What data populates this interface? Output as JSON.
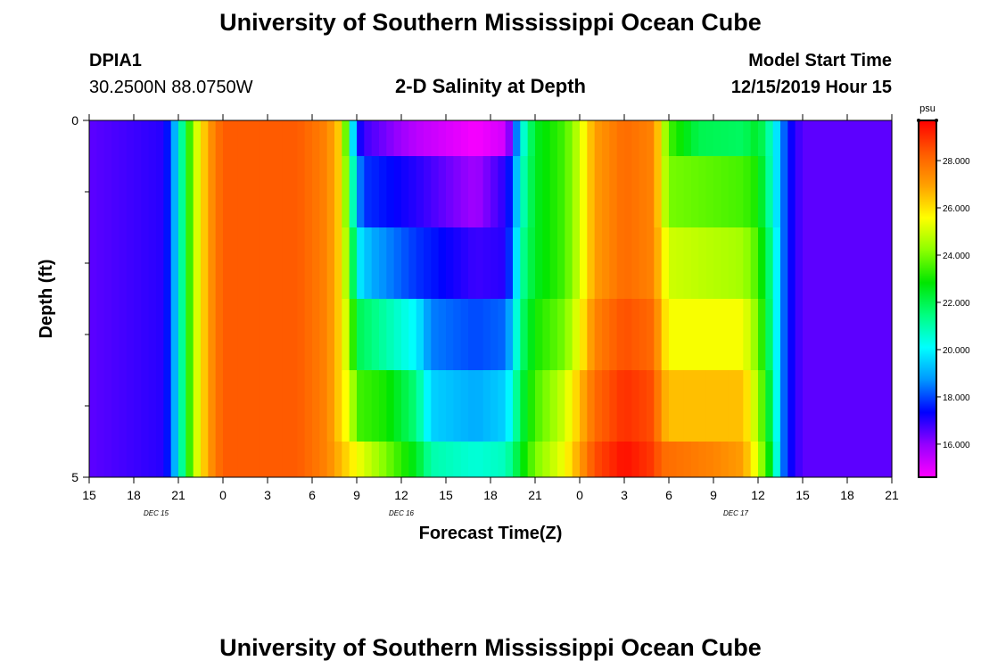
{
  "header": {
    "title": "University of Southern Mississippi Ocean Cube",
    "station_id": "DPIA1",
    "station_coords": "30.2500N 88.0750W",
    "model_start_label": "Model Start Time",
    "model_start_value": "12/15/2019 Hour 15",
    "footer_title": "University of Southern Mississippi Ocean Cube"
  },
  "colors": {
    "background": "#ffffff",
    "colormap": [
      "#ff00ff",
      "#9600ff",
      "#0000ff",
      "#0096ff",
      "#00ffff",
      "#00ff80",
      "#00e600",
      "#8cff00",
      "#ffff00",
      "#ffa000",
      "#ff5a00",
      "#ff0000"
    ]
  },
  "chart_data": {
    "type": "heatmap",
    "title": "2-D Salinity at Depth",
    "xlabel": "Forecast Time(Z)",
    "ylabel": "Depth (ft)",
    "x_tick_labels": [
      "15",
      "18",
      "21",
      "0",
      "3",
      "6",
      "9",
      "12",
      "15",
      "18",
      "21",
      "0",
      "3",
      "6",
      "9",
      "12",
      "15",
      "18",
      "21"
    ],
    "x_range_hours": [
      0,
      54
    ],
    "date_labels": [
      {
        "text": "DEC 15",
        "hour": 4.5
      },
      {
        "text": "DEC 16",
        "hour": 21
      },
      {
        "text": "DEC 17",
        "hour": 43.5
      }
    ],
    "y_tick_labels": [
      "0",
      "5"
    ],
    "ylim": [
      0,
      5
    ],
    "y_minor_ticks": [
      1,
      2,
      3,
      4
    ],
    "colorbar": {
      "unit": "psu",
      "min": 14.6,
      "max": 29.7,
      "tick_labels": [
        "28.000",
        "26.000",
        "24.000",
        "22.000",
        "20.000",
        "18.000",
        "16.000"
      ],
      "tick_values": [
        28,
        26,
        24,
        22,
        20,
        18,
        16
      ]
    },
    "layers": [
      {
        "depth_range": [
          0,
          0.5
        ],
        "knots": [
          [
            0,
            16.5
          ],
          [
            5,
            17.0
          ],
          [
            5.5,
            18.0
          ],
          [
            6.2,
            21.0
          ],
          [
            7.0,
            24.5
          ],
          [
            8.0,
            27.0
          ],
          [
            9,
            28.3
          ],
          [
            14,
            28.3
          ],
          [
            16,
            27.5
          ],
          [
            17,
            26.0
          ],
          [
            17.6,
            21.0
          ],
          [
            18,
            17.5
          ],
          [
            18.5,
            16.8
          ],
          [
            22,
            15.5
          ],
          [
            26,
            14.7
          ],
          [
            28,
            15.2
          ],
          [
            28.5,
            17.0
          ],
          [
            29,
            20.0
          ],
          [
            30,
            22.5
          ],
          [
            32,
            23.5
          ],
          [
            33,
            25.0
          ],
          [
            34,
            27.0
          ],
          [
            36,
            28.0
          ],
          [
            38,
            27.5
          ],
          [
            38.5,
            25.5
          ],
          [
            39,
            23.5
          ],
          [
            41,
            22.0
          ],
          [
            44,
            21.8
          ],
          [
            45,
            22.5
          ],
          [
            46,
            20.5
          ],
          [
            46.5,
            19.0
          ],
          [
            47,
            17.5
          ],
          [
            48,
            16.5
          ],
          [
            54,
            16.5
          ]
        ]
      },
      {
        "depth_range": [
          0.5,
          1.5
        ],
        "knots": [
          [
            0,
            16.5
          ],
          [
            5,
            17.0
          ],
          [
            5.5,
            18.0
          ],
          [
            6.2,
            21.0
          ],
          [
            7.0,
            24.5
          ],
          [
            8.0,
            27.0
          ],
          [
            9,
            28.3
          ],
          [
            14,
            28.3
          ],
          [
            16,
            27.5
          ],
          [
            17,
            26.0
          ],
          [
            17.6,
            22.0
          ],
          [
            18,
            19.0
          ],
          [
            18.5,
            17.8
          ],
          [
            22,
            17.0
          ],
          [
            26,
            15.8
          ],
          [
            28,
            17.0
          ],
          [
            28.5,
            18.0
          ],
          [
            29,
            20.5
          ],
          [
            30,
            22.5
          ],
          [
            32,
            23.5
          ],
          [
            33,
            25.0
          ],
          [
            34,
            27.0
          ],
          [
            36,
            28.0
          ],
          [
            38,
            27.5
          ],
          [
            38.5,
            25.5
          ],
          [
            39,
            24.0
          ],
          [
            44,
            23.5
          ],
          [
            45,
            23.0
          ],
          [
            46,
            20.5
          ],
          [
            46.5,
            19.0
          ],
          [
            47,
            17.5
          ],
          [
            48,
            16.5
          ],
          [
            54,
            16.5
          ]
        ]
      },
      {
        "depth_range": [
          1.5,
          2.5
        ],
        "knots": [
          [
            0,
            16.5
          ],
          [
            5,
            17.0
          ],
          [
            5.5,
            18.0
          ],
          [
            6.2,
            21.0
          ],
          [
            7.0,
            24.5
          ],
          [
            8.0,
            27.0
          ],
          [
            9,
            28.3
          ],
          [
            14,
            28.3
          ],
          [
            16,
            27.5
          ],
          [
            17,
            26.0
          ],
          [
            17.6,
            23.0
          ],
          [
            18,
            20.0
          ],
          [
            19,
            19.0
          ],
          [
            22,
            17.8
          ],
          [
            26,
            16.8
          ],
          [
            28,
            17.0
          ],
          [
            28.5,
            18.5
          ],
          [
            29,
            21.0
          ],
          [
            30,
            22.5
          ],
          [
            32,
            23.5
          ],
          [
            33,
            25.0
          ],
          [
            34,
            27.0
          ],
          [
            36,
            28.0
          ],
          [
            38,
            27.5
          ],
          [
            38.5,
            26.0
          ],
          [
            39,
            25.0
          ],
          [
            44,
            24.5
          ],
          [
            45,
            23.5
          ],
          [
            46,
            21.0
          ],
          [
            46.5,
            19.0
          ],
          [
            47,
            17.5
          ],
          [
            48,
            16.5
          ],
          [
            54,
            16.5
          ]
        ]
      },
      {
        "depth_range": [
          2.5,
          3.5
        ],
        "knots": [
          [
            0,
            16.5
          ],
          [
            5,
            17.0
          ],
          [
            5.5,
            18.0
          ],
          [
            6.2,
            21.0
          ],
          [
            7.0,
            24.5
          ],
          [
            8.0,
            27.0
          ],
          [
            9,
            28.3
          ],
          [
            14,
            28.3
          ],
          [
            16,
            27.5
          ],
          [
            17,
            26.0
          ],
          [
            17.6,
            24.0
          ],
          [
            18,
            22.0
          ],
          [
            19,
            21.5
          ],
          [
            22,
            20.0
          ],
          [
            23,
            18.5
          ],
          [
            26,
            18.0
          ],
          [
            28,
            18.3
          ],
          [
            28.5,
            19.5
          ],
          [
            29,
            21.5
          ],
          [
            30,
            23.0
          ],
          [
            32,
            24.0
          ],
          [
            33,
            25.5
          ],
          [
            34,
            27.5
          ],
          [
            36,
            28.5
          ],
          [
            38,
            28.0
          ],
          [
            38.5,
            26.5
          ],
          [
            39,
            25.5
          ],
          [
            44,
            25.5
          ],
          [
            45,
            24.0
          ],
          [
            46,
            21.0
          ],
          [
            46.5,
            19.0
          ],
          [
            47,
            17.5
          ],
          [
            48,
            16.5
          ],
          [
            54,
            16.5
          ]
        ]
      },
      {
        "depth_range": [
          3.5,
          4.5
        ],
        "knots": [
          [
            0,
            16.5
          ],
          [
            5,
            17.0
          ],
          [
            5.5,
            18.0
          ],
          [
            6.2,
            21.0
          ],
          [
            7.0,
            24.5
          ],
          [
            8.0,
            27.0
          ],
          [
            9,
            28.3
          ],
          [
            14,
            28.3
          ],
          [
            16,
            27.5
          ],
          [
            17,
            26.0
          ],
          [
            17.6,
            25.0
          ],
          [
            18,
            23.5
          ],
          [
            20,
            23.0
          ],
          [
            22,
            21.5
          ],
          [
            23,
            19.5
          ],
          [
            26,
            19.0
          ],
          [
            28,
            19.5
          ],
          [
            28.5,
            20.5
          ],
          [
            29,
            22.0
          ],
          [
            30,
            23.5
          ],
          [
            32,
            25.0
          ],
          [
            33,
            26.5
          ],
          [
            34,
            28.0
          ],
          [
            36,
            29.0
          ],
          [
            38,
            28.5
          ],
          [
            38.5,
            27.0
          ],
          [
            39,
            26.5
          ],
          [
            44,
            26.5
          ],
          [
            45,
            24.5
          ],
          [
            46,
            21.5
          ],
          [
            46.5,
            19.0
          ],
          [
            47,
            17.5
          ],
          [
            48,
            16.5
          ],
          [
            54,
            16.5
          ]
        ]
      },
      {
        "depth_range": [
          4.5,
          5
        ],
        "knots": [
          [
            0,
            16.5
          ],
          [
            5,
            17.0
          ],
          [
            5.5,
            18.0
          ],
          [
            6.2,
            21.0
          ],
          [
            7.0,
            24.5
          ],
          [
            8.0,
            27.0
          ],
          [
            9,
            28.3
          ],
          [
            14,
            28.3
          ],
          [
            16,
            27.5
          ],
          [
            17,
            26.5
          ],
          [
            18,
            25.5
          ],
          [
            20,
            24.0
          ],
          [
            22,
            22.5
          ],
          [
            23,
            21.0
          ],
          [
            26,
            20.5
          ],
          [
            28,
            20.8
          ],
          [
            28.5,
            21.5
          ],
          [
            29,
            22.5
          ],
          [
            30,
            24.0
          ],
          [
            32,
            25.5
          ],
          [
            33,
            27.0
          ],
          [
            34,
            28.5
          ],
          [
            36,
            29.5
          ],
          [
            38,
            28.8
          ],
          [
            38.5,
            28.0
          ],
          [
            42,
            27.5
          ],
          [
            44,
            27.0
          ],
          [
            45,
            25.0
          ],
          [
            46,
            22.0
          ],
          [
            46.5,
            19.0
          ],
          [
            47,
            17.5
          ],
          [
            48,
            16.5
          ],
          [
            54,
            16.5
          ]
        ]
      }
    ]
  }
}
